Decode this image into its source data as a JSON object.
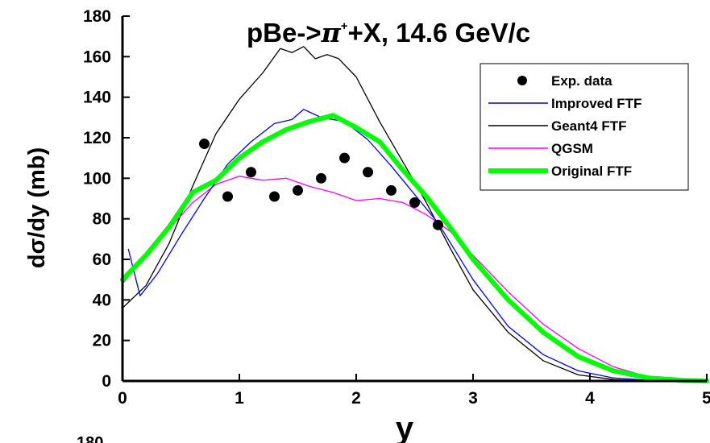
{
  "chart_data": {
    "type": "line",
    "title_main": "pBe->",
    "title_particle": "π",
    "title_superscript": "+",
    "title_tail": "+X, 14.6 GeV/c",
    "xlabel": "y",
    "ylabel": "dσ/dy (mb)",
    "xlim": [
      0,
      5
    ],
    "ylim": [
      0,
      180
    ],
    "xticks": [
      0,
      1,
      2,
      3,
      4,
      5
    ],
    "yticks": [
      0,
      20,
      40,
      60,
      80,
      100,
      120,
      140,
      160,
      180
    ],
    "grid": false,
    "legend_position": "top-right",
    "cropped_label": "180",
    "series": [
      {
        "name": "Exp. data",
        "style": "markers",
        "color": "#000000",
        "x": [
          0.7,
          0.9,
          1.1,
          1.3,
          1.5,
          1.7,
          1.9,
          2.1,
          2.3,
          2.5,
          2.7
        ],
        "y": [
          117,
          91,
          103,
          91,
          94,
          100,
          110,
          103,
          94,
          88,
          77
        ]
      },
      {
        "name": "Improved FTF",
        "style": "line",
        "color": "#0000ff",
        "x": [
          0.05,
          0.15,
          0.3,
          0.5,
          0.7,
          0.9,
          1.1,
          1.3,
          1.45,
          1.55,
          1.7,
          1.9,
          2.1,
          2.3,
          2.5,
          2.7,
          3.0,
          3.3,
          3.6,
          3.9,
          4.2,
          4.5
        ],
        "y": [
          65,
          42,
          53,
          72,
          90,
          107,
          118,
          127,
          129,
          134,
          130,
          128,
          119,
          106,
          92,
          78,
          50,
          27,
          13,
          5,
          1.5,
          0.3
        ]
      },
      {
        "name": "Geant4 FTF",
        "style": "line",
        "color": "#000000",
        "x": [
          0.0,
          0.2,
          0.4,
          0.6,
          0.8,
          1.0,
          1.2,
          1.35,
          1.45,
          1.55,
          1.65,
          1.75,
          1.85,
          2.0,
          2.2,
          2.4,
          2.6,
          2.8,
          3.0,
          3.3,
          3.6,
          3.9,
          4.2,
          4.5
        ],
        "y": [
          36,
          47,
          68,
          96,
          122,
          139,
          152,
          164,
          162,
          165,
          159,
          161,
          159,
          150,
          128,
          108,
          88,
          66,
          45,
          24,
          10,
          3,
          0.7,
          0.1
        ]
      },
      {
        "name": "QGSM",
        "style": "line",
        "color": "#ff00ff",
        "x": [
          0.0,
          0.2,
          0.4,
          0.6,
          0.8,
          1.0,
          1.2,
          1.4,
          1.6,
          1.8,
          2.0,
          2.2,
          2.4,
          2.6,
          2.8,
          3.0,
          3.3,
          3.6,
          3.9,
          4.2,
          4.5,
          4.8
        ],
        "y": [
          48,
          62,
          75,
          88,
          97,
          101,
          99,
          100,
          96,
          93,
          89,
          90,
          88,
          82,
          74,
          62,
          44,
          28,
          16,
          7,
          2,
          0.4
        ]
      },
      {
        "name": "Original FTF",
        "style": "line",
        "color": "#00ff00",
        "x": [
          0.0,
          0.2,
          0.4,
          0.6,
          0.8,
          1.0,
          1.2,
          1.4,
          1.6,
          1.8,
          2.0,
          2.2,
          2.4,
          2.6,
          2.8,
          3.0,
          3.3,
          3.6,
          3.9,
          4.2,
          4.5,
          4.8,
          5.0
        ],
        "y": [
          50,
          62,
          76,
          93,
          99,
          110,
          118,
          124,
          128,
          131,
          125,
          118,
          104,
          91,
          76,
          60,
          40,
          24,
          12,
          5,
          1.5,
          0.3,
          0
        ]
      }
    ]
  }
}
